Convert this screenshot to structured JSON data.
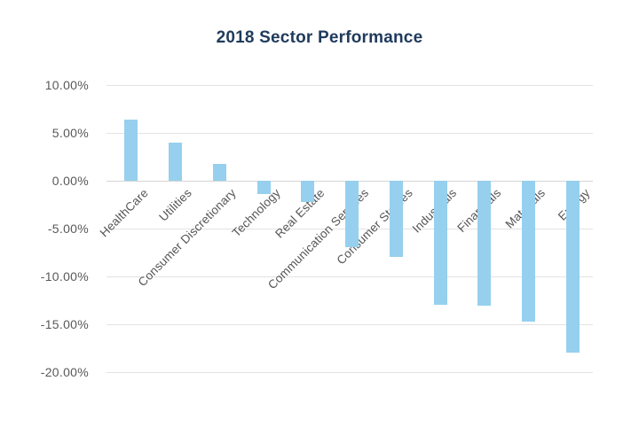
{
  "chart_data": {
    "type": "bar",
    "title": "2018 Sector Performance",
    "categories": [
      "HealthCare",
      "Utilities",
      "Consumer Discretionary",
      "Technology",
      "Real Estate",
      "Communication Services",
      "Consumer Staples",
      "Industrials",
      "Financials",
      "Materials",
      "Energy"
    ],
    "values": [
      6.4,
      4.0,
      1.8,
      -1.4,
      -2.2,
      -6.9,
      -8.0,
      -13.0,
      -13.1,
      -14.7,
      -18.0
    ],
    "unit": "%",
    "xlabel": "",
    "ylabel": "",
    "y_axis": {
      "tick_labels": [
        "10.00%",
        "5.00%",
        "0.00%",
        "-5.00%",
        "-10.00%",
        "-15.00%",
        "-20.00%"
      ],
      "tick_values": [
        10,
        5,
        0,
        -5,
        -10,
        -15,
        -20
      ],
      "min": -20,
      "max": 10
    },
    "grid": true,
    "legend": false,
    "colors": {
      "bar": "#96D0EE",
      "title": "#1F3A5C",
      "y_tick_label": "#595959",
      "category_label": "#555555",
      "gridline": "#E3E3E3",
      "zero_line": "#D5D5D5",
      "background": "#FFFFFF"
    }
  }
}
